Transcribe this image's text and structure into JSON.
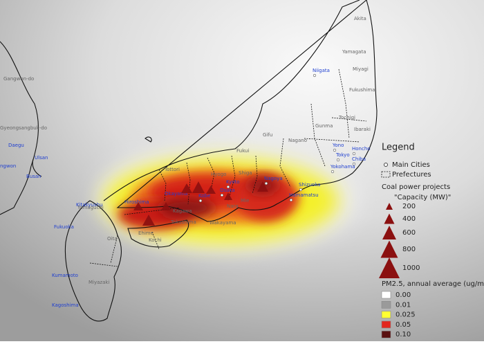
{
  "cities": [
    "Niigata",
    "Yono",
    "Honcho",
    "Tokyo",
    "Chiba",
    "Yokohama",
    "Shizuoka",
    "Hamamatsu",
    "Nagoya",
    "Kyoto",
    "Osaka",
    "Kobe",
    "Okayama",
    "Hiroshima",
    "Kitakyushu",
    "Fukuoka",
    "Kumamoto",
    "Kagoshima",
    "Busan",
    "Ulsan",
    "Daegu",
    "ngwon"
  ],
  "regions": [
    "Akita",
    "Yamagata",
    "Miyagi",
    "Fukushima",
    "Gunma",
    "Tochigi",
    "Ibaraki",
    "Nagano",
    "Gifu",
    "Fukui",
    "Tottori",
    "Shiga",
    "Mie",
    "Nara",
    "Wakayama",
    "Tokushima",
    "Kagawa",
    "Ehime",
    "Kochi",
    "Yamaguchi",
    "Oita",
    "Miyazaki",
    "Hyogo",
    "Gangwon-do",
    "Gyeongsangbuk-do"
  ],
  "legend": {
    "title": "Legend",
    "main_cities": "Main Cities",
    "prefectures": "Prefectures",
    "coal_title": "Coal power projects",
    "capacity_title": "\"Capacity (MW)\"",
    "capacities": [
      "200",
      "400",
      "600",
      "800",
      "1000"
    ],
    "pm_title": "PM2.5, annual average (ug/m3)",
    "pm_classes": [
      {
        "label": "0.00",
        "color": "#ffffff"
      },
      {
        "label": "0.01",
        "color": "#9a9a9a"
      },
      {
        "label": "0.025",
        "color": "#ffff33"
      },
      {
        "label": "0.05",
        "color": "#e3261e"
      },
      {
        "label": "0.10",
        "color": "#5a0f0f"
      }
    ]
  }
}
